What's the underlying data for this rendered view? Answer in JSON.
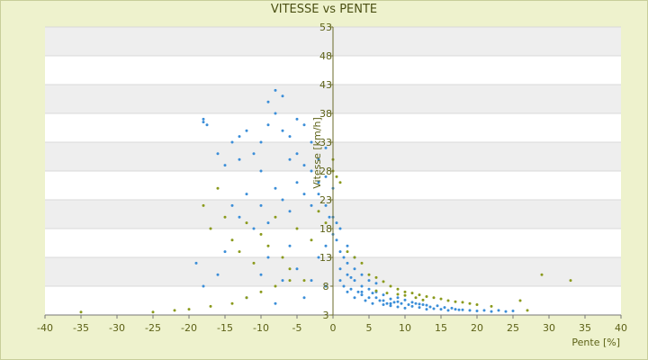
{
  "chart_data": {
    "type": "scatter",
    "title": "VITESSE vs PENTE",
    "xlabel": "Pente [%]",
    "ylabel": "Vitesse [km/h]",
    "xlim": [
      -40,
      40
    ],
    "ylim": [
      3,
      53
    ],
    "x_ticks": [
      -40,
      -35,
      -30,
      -25,
      -20,
      -15,
      -10,
      -5,
      0,
      5,
      10,
      15,
      20,
      25,
      30,
      35,
      40
    ],
    "y_ticks": [
      3,
      8,
      13,
      18,
      23,
      28,
      33,
      38,
      43,
      48,
      53
    ],
    "x_tick_labels": [
      "-40",
      "-35",
      "-30",
      "-25",
      "-20",
      "-15",
      "-10",
      "-5",
      "0",
      "5",
      "10",
      "15",
      "20",
      "25",
      "30",
      "35",
      "40"
    ],
    "y_tick_labels": [
      "3",
      "8",
      "13",
      "18",
      "23",
      "28",
      "33",
      "38",
      "43",
      "48",
      "53"
    ],
    "grid": true,
    "band_fills": true,
    "series": [
      {
        "color": "#3b8ed8",
        "points": [
          [
            -18,
            37
          ],
          [
            -18,
            36.5
          ],
          [
            -17.5,
            36
          ],
          [
            -16,
            31
          ],
          [
            -15,
            29
          ],
          [
            -14,
            33
          ],
          [
            -13,
            34
          ],
          [
            -13,
            30
          ],
          [
            -12,
            35
          ],
          [
            -11,
            31
          ],
          [
            -10,
            33
          ],
          [
            -10,
            28
          ],
          [
            -9,
            40
          ],
          [
            -9,
            36
          ],
          [
            -8,
            42
          ],
          [
            -8,
            38
          ],
          [
            -7,
            41
          ],
          [
            -7,
            35
          ],
          [
            -6,
            34
          ],
          [
            -6,
            30
          ],
          [
            -5,
            37
          ],
          [
            -5,
            31
          ],
          [
            -4,
            36
          ],
          [
            -4,
            29
          ],
          [
            -3,
            33
          ],
          [
            -3,
            28
          ],
          [
            -2,
            30
          ],
          [
            -2,
            26
          ],
          [
            -1,
            32
          ],
          [
            -1,
            27
          ],
          [
            -14,
            22
          ],
          [
            -13,
            20
          ],
          [
            -12,
            24
          ],
          [
            -11,
            18
          ],
          [
            -10,
            22
          ],
          [
            -9,
            19
          ],
          [
            -8,
            25
          ],
          [
            -7,
            23
          ],
          [
            -6,
            21
          ],
          [
            -5,
            26
          ],
          [
            -4,
            24
          ],
          [
            -3,
            22
          ],
          [
            -2,
            24
          ],
          [
            -1,
            22
          ],
          [
            0,
            25
          ],
          [
            0,
            20
          ],
          [
            0,
            17
          ],
          [
            0.5,
            19
          ],
          [
            -0.5,
            20
          ],
          [
            -1,
            15
          ],
          [
            -19,
            12
          ],
          [
            -18,
            8
          ],
          [
            -16,
            10
          ],
          [
            -15,
            14
          ],
          [
            -12,
            6
          ],
          [
            -10,
            10
          ],
          [
            -9,
            13
          ],
          [
            -8,
            5
          ],
          [
            -7,
            9
          ],
          [
            -6,
            15
          ],
          [
            -5,
            11
          ],
          [
            -4,
            6
          ],
          [
            -3,
            9
          ],
          [
            -2,
            13
          ],
          [
            -1,
            8
          ],
          [
            1,
            11
          ],
          [
            1,
            9
          ],
          [
            1.5,
            8
          ],
          [
            2,
            10
          ],
          [
            2,
            7
          ],
          [
            2.5,
            7.5
          ],
          [
            3,
            9
          ],
          [
            3,
            6
          ],
          [
            3.5,
            7
          ],
          [
            4,
            6.5
          ],
          [
            4,
            8
          ],
          [
            4.5,
            5.5
          ],
          [
            5,
            6
          ],
          [
            5,
            7.5
          ],
          [
            5.5,
            5
          ],
          [
            6,
            6
          ],
          [
            6,
            7
          ],
          [
            6.5,
            5.5
          ],
          [
            7,
            4.8
          ],
          [
            7,
            6.5
          ],
          [
            7.5,
            5
          ],
          [
            8,
            5.8
          ],
          [
            8,
            4.6
          ],
          [
            8.5,
            5.2
          ],
          [
            9,
            4.4
          ],
          [
            9,
            6
          ],
          [
            9.5,
            5
          ],
          [
            10,
            4.2
          ],
          [
            10,
            5.6
          ],
          [
            10.5,
            4.8
          ],
          [
            11,
            4.5
          ],
          [
            11.5,
            5
          ],
          [
            12,
            4.3
          ],
          [
            12.5,
            4.8
          ],
          [
            13,
            4
          ],
          [
            13.5,
            4.4
          ],
          [
            14,
            4.1
          ],
          [
            14.5,
            4.6
          ],
          [
            15,
            4
          ],
          [
            15.5,
            4.3
          ],
          [
            16,
            3.8
          ],
          [
            16.5,
            4.2
          ],
          [
            17,
            4
          ],
          [
            17.5,
            3.9
          ],
          [
            18,
            3.9
          ],
          [
            19,
            3.8
          ],
          [
            20,
            3.7
          ],
          [
            21,
            3.8
          ],
          [
            22,
            3.6
          ],
          [
            23,
            3.8
          ],
          [
            24,
            3.6
          ],
          [
            25,
            3.7
          ],
          [
            2,
            12
          ],
          [
            3,
            11
          ],
          [
            4,
            10
          ],
          [
            5,
            9
          ],
          [
            6,
            8.5
          ],
          [
            1,
            14
          ],
          [
            1.5,
            13
          ],
          [
            2,
            15
          ],
          [
            0.5,
            16
          ],
          [
            1,
            18
          ],
          [
            3,
            13
          ],
          [
            2.5,
            9.5
          ],
          [
            4,
            7
          ],
          [
            5.5,
            6.8
          ],
          [
            7,
            5.5
          ],
          [
            8,
            5
          ],
          [
            9,
            5.3
          ],
          [
            11,
            5.2
          ],
          [
            12,
            4.9
          ],
          [
            13,
            4.7
          ]
        ]
      },
      {
        "color": "#8a9a1c",
        "points": [
          [
            -35,
            3.5
          ],
          [
            -25,
            3.5
          ],
          [
            -22,
            3.8
          ],
          [
            -20,
            4
          ],
          [
            -17,
            4.5
          ],
          [
            -14,
            5
          ],
          [
            -12,
            6
          ],
          [
            -10,
            7
          ],
          [
            -8,
            8
          ],
          [
            -6,
            9
          ],
          [
            -18,
            22
          ],
          [
            -17,
            18
          ],
          [
            -16,
            25
          ],
          [
            -15,
            20
          ],
          [
            -14,
            16
          ],
          [
            -13,
            14
          ],
          [
            -12,
            19
          ],
          [
            -11,
            12
          ],
          [
            -10,
            17
          ],
          [
            -9,
            15
          ],
          [
            -8,
            20
          ],
          [
            -7,
            13
          ],
          [
            -6,
            11
          ],
          [
            -5,
            18
          ],
          [
            -4,
            9
          ],
          [
            -3,
            16
          ],
          [
            -2,
            21
          ],
          [
            -1,
            19
          ],
          [
            0,
            30
          ],
          [
            0,
            28
          ],
          [
            0.5,
            27
          ],
          [
            1,
            26
          ],
          [
            2,
            14
          ],
          [
            3,
            13
          ],
          [
            4,
            12
          ],
          [
            5,
            10
          ],
          [
            6,
            9.5
          ],
          [
            7,
            8.8
          ],
          [
            8,
            8
          ],
          [
            9,
            7.5
          ],
          [
            10,
            7
          ],
          [
            11,
            6.8
          ],
          [
            12,
            6.5
          ],
          [
            13,
            6.2
          ],
          [
            14,
            6
          ],
          [
            15,
            5.8
          ],
          [
            16,
            5.5
          ],
          [
            17,
            5.3
          ],
          [
            18,
            5.2
          ],
          [
            19,
            5
          ],
          [
            20,
            4.8
          ],
          [
            22,
            4.5
          ],
          [
            26,
            5.5
          ],
          [
            27,
            3.8
          ],
          [
            29,
            10
          ],
          [
            33,
            9
          ],
          [
            6,
            7.2
          ],
          [
            7.5,
            6.8
          ],
          [
            9,
            6.6
          ],
          [
            10,
            6.4
          ],
          [
            11.5,
            6
          ],
          [
            12.5,
            5.6
          ]
        ]
      }
    ]
  }
}
